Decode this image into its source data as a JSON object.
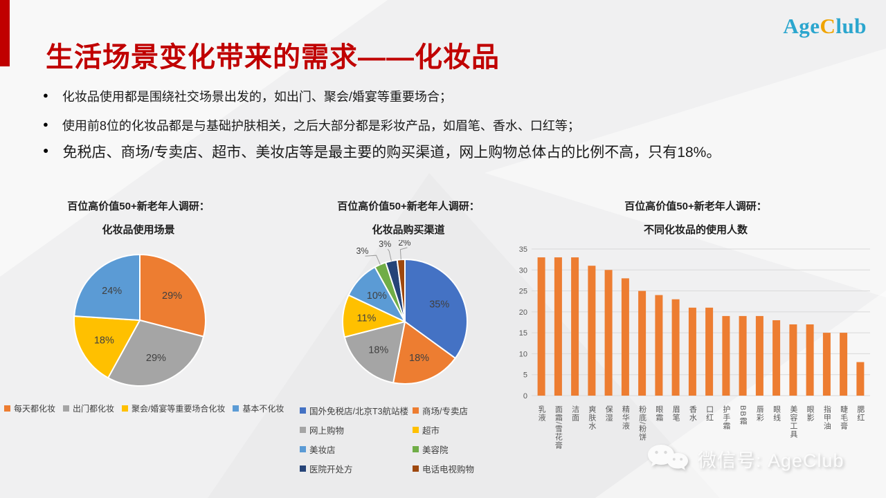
{
  "logo": {
    "part1": "Age",
    "part2": "C",
    "part3": "lub"
  },
  "title": "生活场景变化带来的需求——化妆品",
  "bullets": [
    "化妆品使用都是围绕社交场景出发的，如出门、聚会/婚宴等重要场合；",
    "使用前8位的化妆品都是与基础护肤相关，之后大部分都是彩妆产品，如眉笔、香水、口红等；",
    "免税店、商场/专卖店、超市、美妆店等是最主要的购买渠道，网上购物总体占的比例不高，只有18%。"
  ],
  "footer": {
    "wechat_label": "微信号: AgeClub"
  },
  "colors": {
    "accent_red": "#c00000",
    "logo_blue": "#2ba6ce",
    "logo_gold": "#f0a400",
    "label_gray": "#404040",
    "axis_gray": "#595959",
    "gridline": "#d9d9d9"
  },
  "chart_data": [
    {
      "type": "pie",
      "title_line1": "百位高价值50+新老年人调研：",
      "title_line2": "化妆品使用场景",
      "labels": [
        "每天都化妆",
        "出门都化妆",
        "聚会/婚宴等重要场合化妆",
        "基本不化妆"
      ],
      "values": [
        29,
        29,
        18,
        24
      ],
      "value_labels": [
        "29%",
        "29%",
        "18%",
        "24%"
      ],
      "colors": [
        "#ED7D31",
        "#A5A5A5",
        "#FFC000",
        "#5B9BD5"
      ],
      "legend_position": "bottom"
    },
    {
      "type": "pie",
      "title_line1": "百位高价值50+新老年人调研：",
      "title_line2": "化妆品购买渠道",
      "labels": [
        "国外免税店/北京T3航站楼",
        "商场/专卖店",
        "网上购物",
        "超市",
        "美妆店",
        "美容院",
        "医院开处方",
        "电话电视购物"
      ],
      "values": [
        35,
        18,
        18,
        11,
        10,
        3,
        3,
        2
      ],
      "value_labels": [
        "35%",
        "18%",
        "18%",
        "11%",
        "10%",
        "3%",
        "3%",
        "2%"
      ],
      "colors": [
        "#4472C4",
        "#ED7D31",
        "#A5A5A5",
        "#FFC000",
        "#5B9BD5",
        "#70AD47",
        "#264478",
        "#9E480E"
      ],
      "legend_position": "bottom-2col"
    },
    {
      "type": "bar",
      "title_line1": "百位高价值50+新老年人调研：",
      "title_line2": "不同化妆品的使用人数",
      "categories": [
        "乳液",
        "面霜/雪花膏",
        "洁面",
        "爽肤水",
        "保湿",
        "精华液",
        "粉底/粉饼",
        "眼霜",
        "眉笔",
        "香水",
        "口红",
        "护手霜",
        "BB霜",
        "唇彩",
        "眼线",
        "美容工具",
        "眼影",
        "指甲油",
        "睫毛膏",
        "腮红"
      ],
      "values": [
        33,
        33,
        33,
        31,
        30,
        28,
        25,
        24,
        23,
        21,
        21,
        19,
        19,
        19,
        18,
        17,
        17,
        15,
        15,
        8
      ],
      "bar_color": "#ED7D31",
      "ylim": [
        0,
        35
      ],
      "ytick_step": 5,
      "grid": true,
      "legend_position": "none"
    }
  ]
}
